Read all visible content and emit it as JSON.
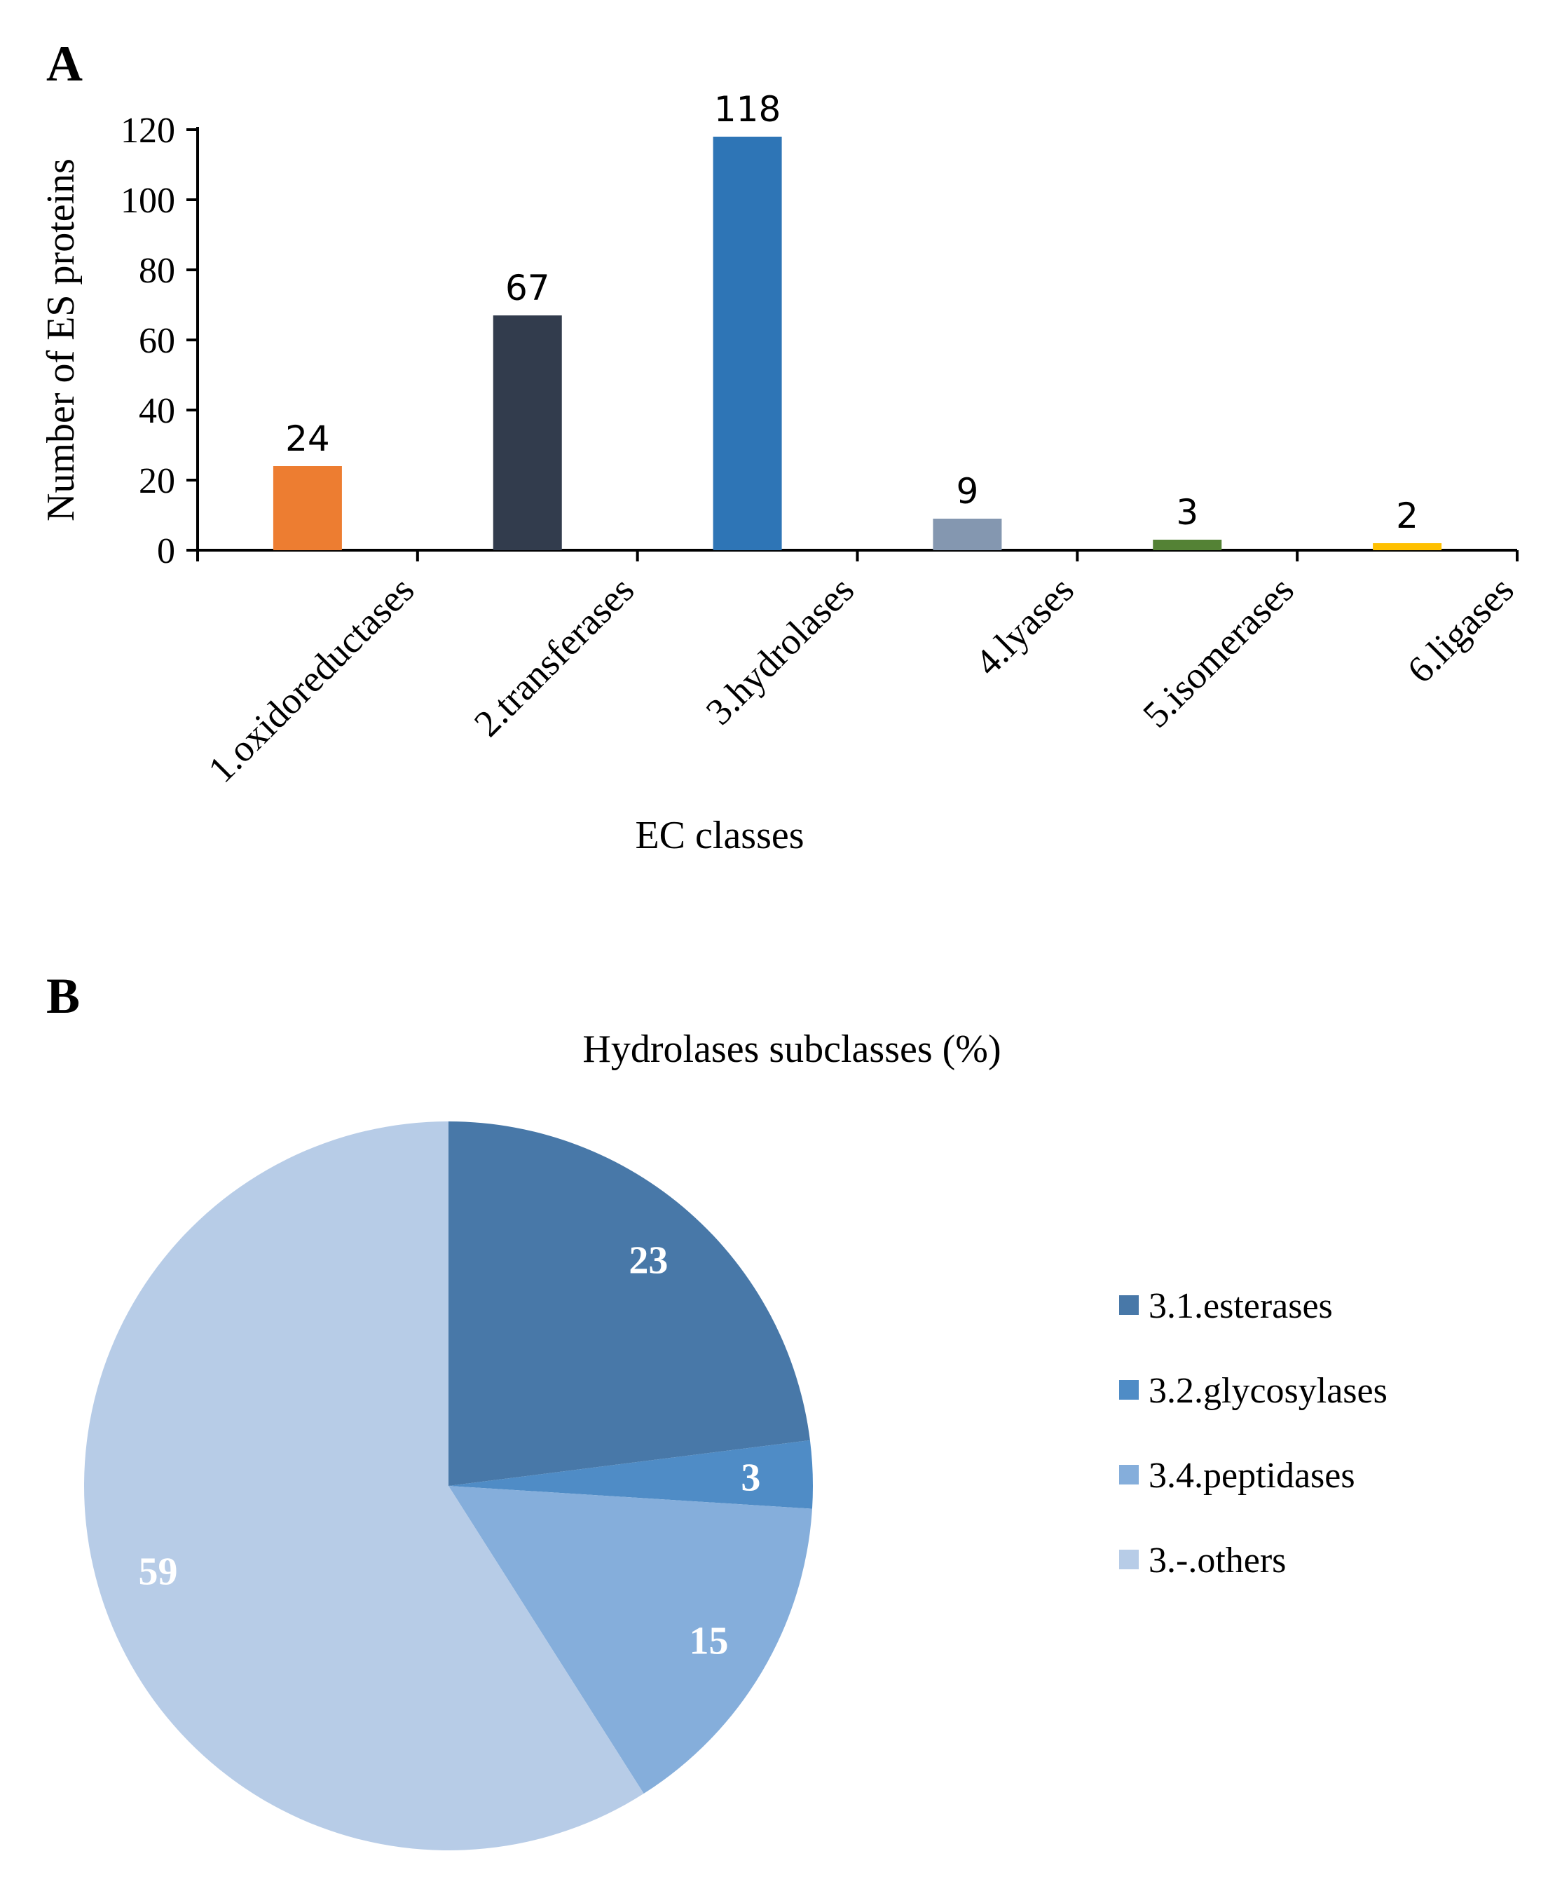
{
  "chart_data": [
    {
      "panel": "A",
      "type": "bar",
      "title": "",
      "xlabel": "EC classes",
      "ylabel": "Number of ES proteins",
      "ylim": [
        0,
        120
      ],
      "yticks": [
        0,
        20,
        40,
        60,
        80,
        100,
        120
      ],
      "grid": false,
      "categories": [
        "1.oxidoreductases",
        "2.transferases",
        "3.hydrolases",
        "4.lyases",
        "5.isomerases",
        "6.ligases"
      ],
      "values": [
        24,
        67,
        118,
        9,
        3,
        2
      ],
      "colors": [
        "#ED7D31",
        "#323C4D",
        "#2E75B6",
        "#8497B0",
        "#548235",
        "#FFC000"
      ]
    },
    {
      "panel": "B",
      "type": "pie",
      "title": "Hydrolases subclasses (%)",
      "labels": [
        "3.1.esterases",
        "3.2.glycosylases",
        "3.4.peptidases",
        "3.-.others"
      ],
      "values": [
        23,
        3,
        15,
        59
      ],
      "colors": [
        "#4878A8",
        "#4F8CC6",
        "#85AEDB",
        "#B7CCE7"
      ],
      "legend_position": "right"
    }
  ]
}
